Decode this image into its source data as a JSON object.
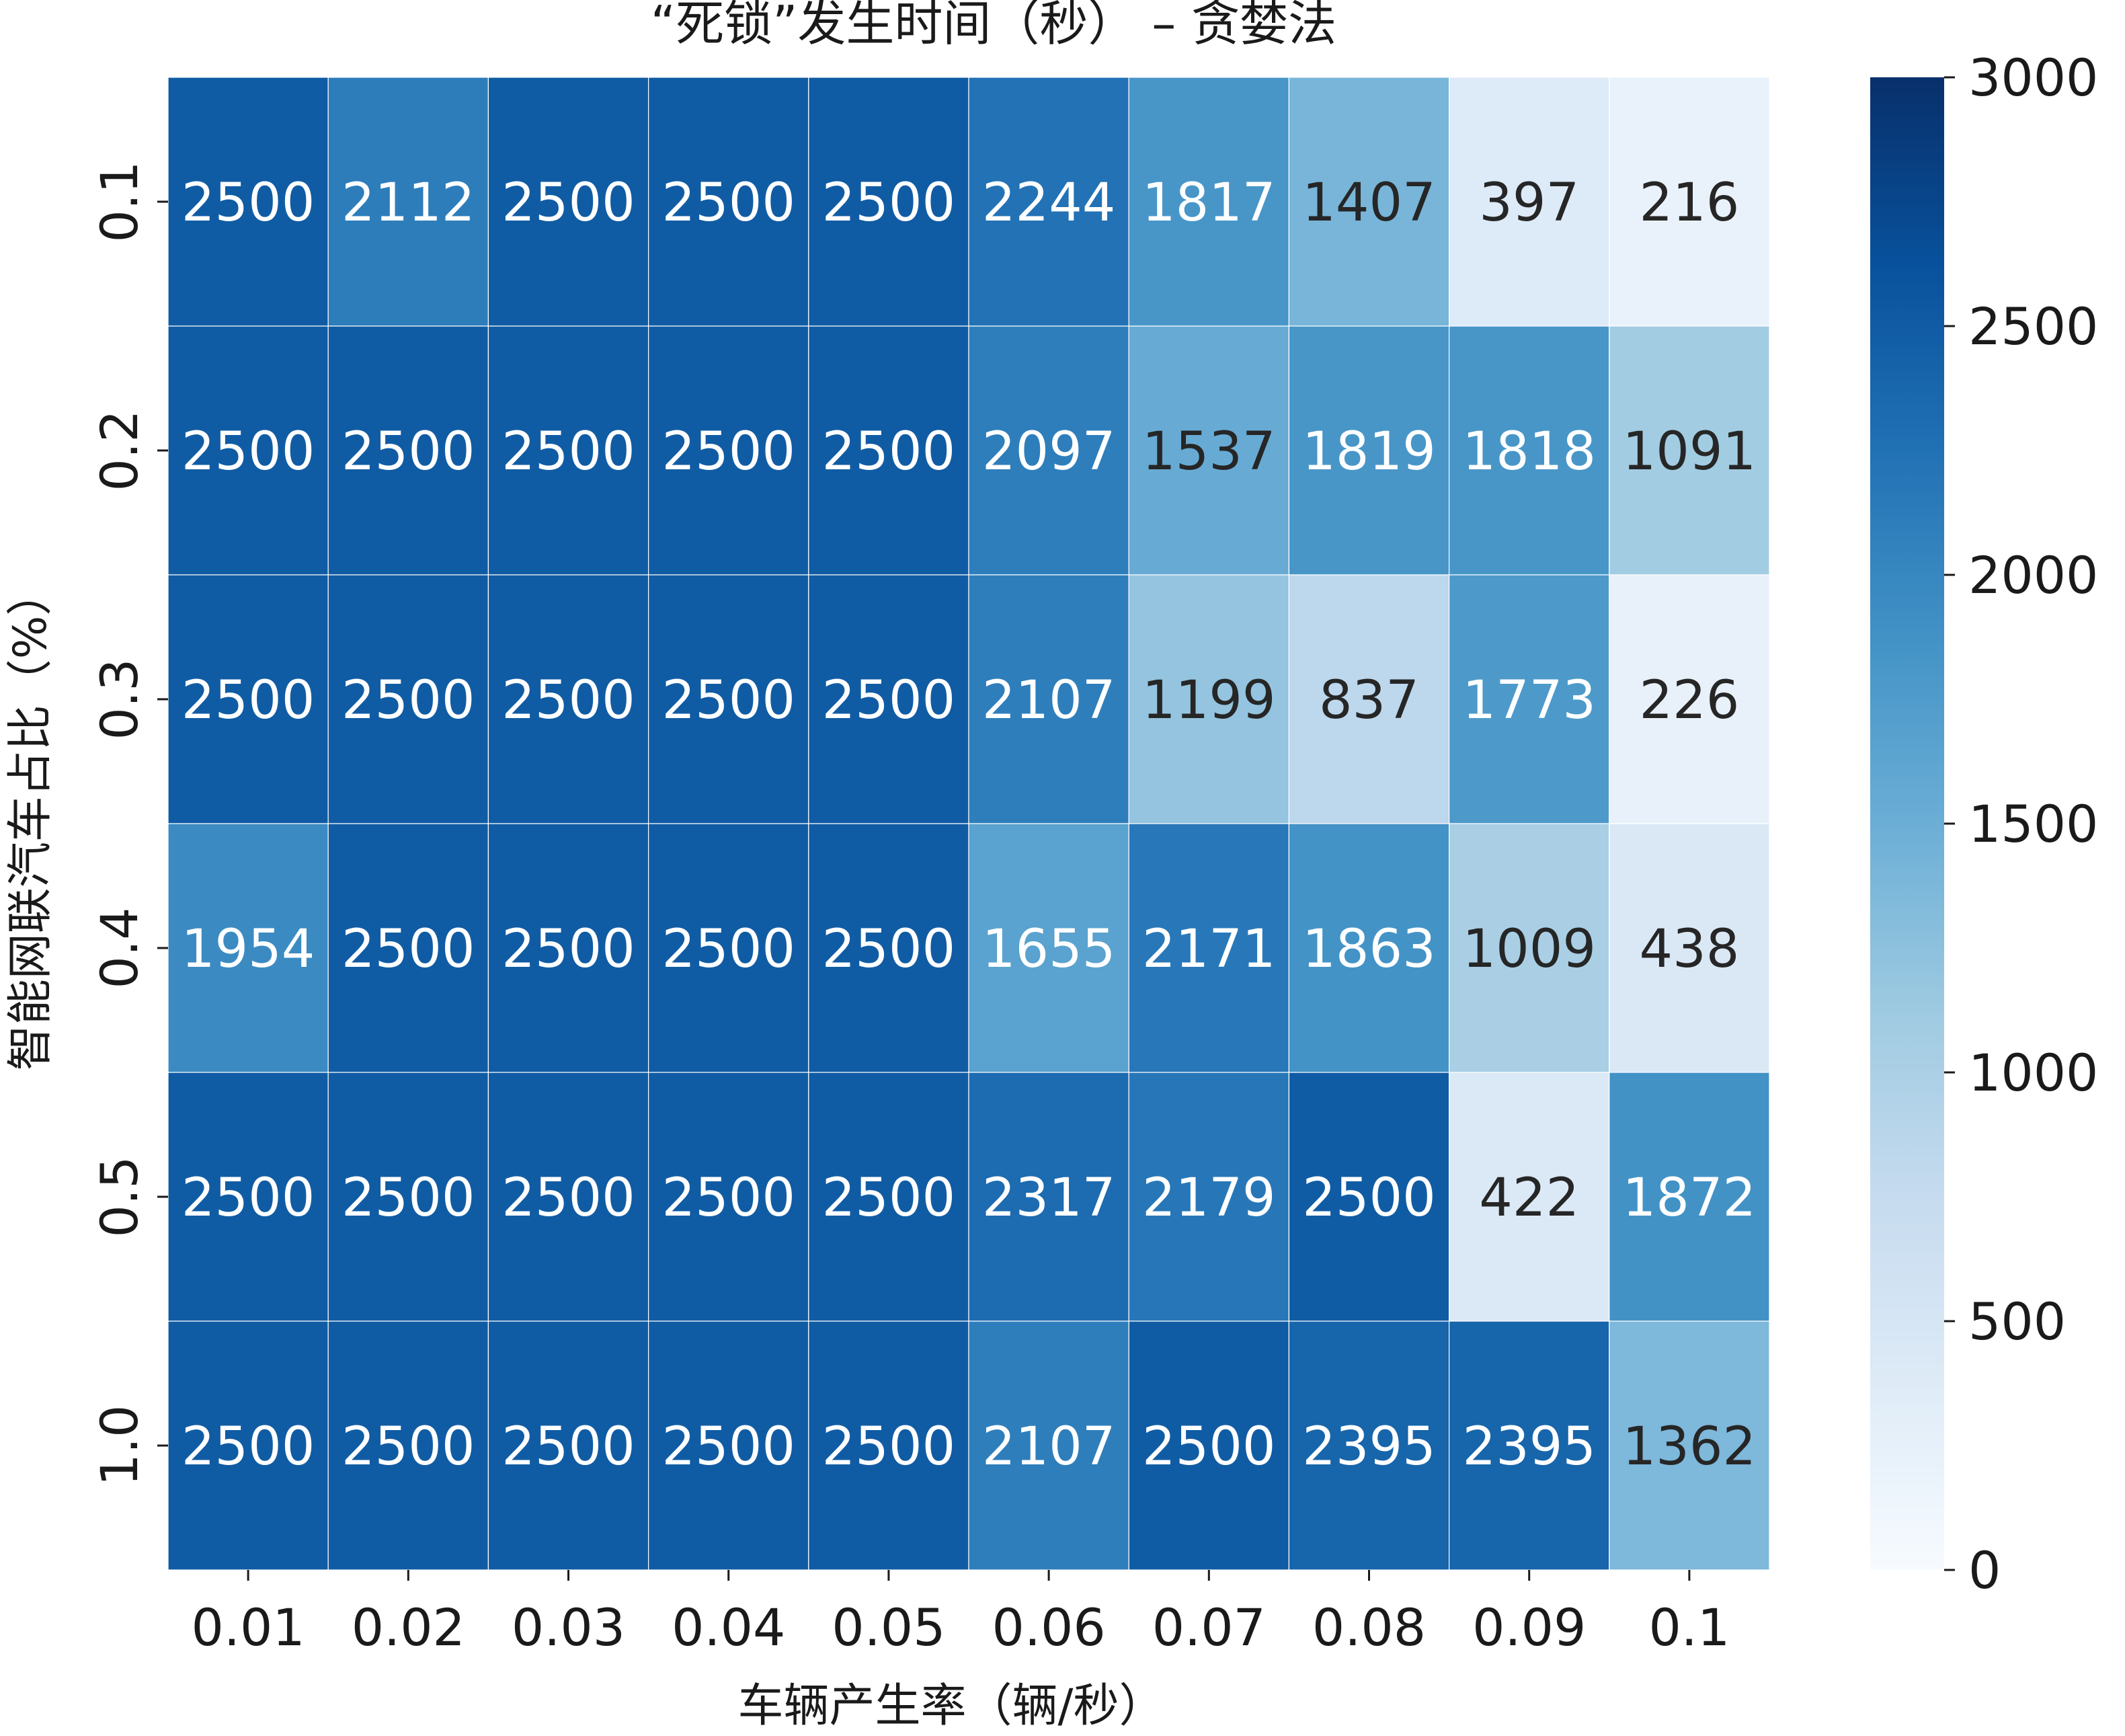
{
  "chart_data": {
    "type": "heatmap",
    "title": "“死锁”发生时间（秒） – 贪婪法",
    "xlabel": "车辆产生率（辆/秒）",
    "ylabel": "智能网联汽车占比（%）",
    "x_categories": [
      "0.01",
      "0.02",
      "0.03",
      "0.04",
      "0.05",
      "0.06",
      "0.07",
      "0.08",
      "0.09",
      "0.1"
    ],
    "y_categories": [
      "0.1",
      "0.2",
      "0.3",
      "0.4",
      "0.5",
      "1.0"
    ],
    "values": [
      [
        2500,
        2112,
        2500,
        2500,
        2500,
        2244,
        1817,
        1407,
        397,
        216
      ],
      [
        2500,
        2500,
        2500,
        2500,
        2500,
        2097,
        1537,
        1819,
        1818,
        1091
      ],
      [
        2500,
        2500,
        2500,
        2500,
        2500,
        2107,
        1199,
        837,
        1773,
        226
      ],
      [
        1954,
        2500,
        2500,
        2500,
        2500,
        1655,
        2171,
        1863,
        1009,
        438
      ],
      [
        2500,
        2500,
        2500,
        2500,
        2500,
        2317,
        2179,
        2500,
        422,
        1872
      ],
      [
        2500,
        2500,
        2500,
        2500,
        2500,
        2107,
        2500,
        2395,
        2395,
        1362
      ]
    ],
    "colormap": "Blues",
    "vmin": 0,
    "vmax": 3000,
    "colorbar_ticks": [
      "0",
      "500",
      "1000",
      "1500",
      "2000",
      "2500",
      "3000"
    ],
    "annotations": true
  }
}
